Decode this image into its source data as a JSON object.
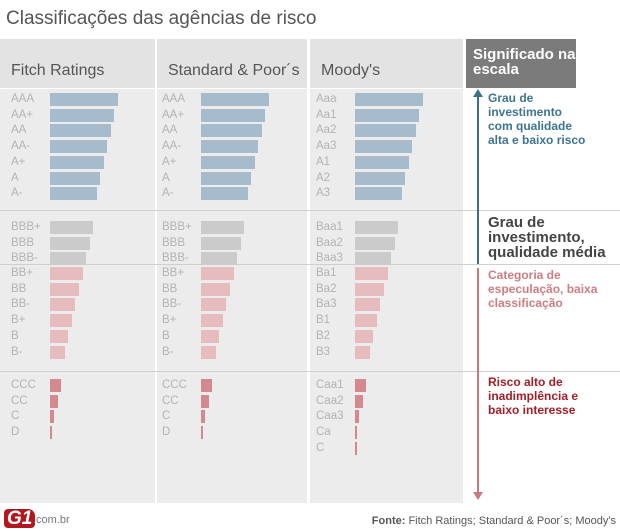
{
  "title": "Classificações das agências de risco",
  "agencies": [
    {
      "name": "Fitch Ratings",
      "groups": [
        [
          "AAA",
          "AA+",
          "AA",
          "AA-",
          "A+",
          "A",
          "A-"
        ],
        [
          "BBB+",
          "BBB",
          "BBB-"
        ],
        [
          "BB+",
          "BB",
          "BB-",
          "B+",
          "B",
          "B-"
        ],
        [
          "CCC",
          "CC",
          "C",
          "D"
        ]
      ]
    },
    {
      "name": "Standard & Poor´s",
      "groups": [
        [
          "AAA",
          "AA+",
          "AA",
          "AA-",
          "A+",
          "A",
          "A-"
        ],
        [
          "BBB+",
          "BBB",
          "BBB-"
        ],
        [
          "BB+",
          "BB",
          "BB-",
          "B+",
          "B",
          "B-"
        ],
        [
          "CCC",
          "CC",
          "C",
          "D"
        ]
      ]
    },
    {
      "name": "Moody's",
      "groups": [
        [
          "Aaa",
          "Aa1",
          "Aa2",
          "Aa3",
          "A1",
          "A2",
          "A3"
        ],
        [
          "Baa1",
          "Baa2",
          "Baa3"
        ],
        [
          "Ba1",
          "Ba2",
          "Ba3",
          "B1",
          "B2",
          "B3"
        ],
        [
          "Caa1",
          "Caa2",
          "Caa3",
          "Ca",
          "C"
        ]
      ]
    }
  ],
  "meaning": {
    "header": "Significado na escala",
    "notes": [
      "Grau de investimento com qualidade alta e baixo risco",
      "Grau de investimento, qualidade média",
      "Categoria de especulação, baixa classificação",
      "Risco alto de inadimplência e baixo interesse"
    ]
  },
  "colors": {
    "group_bars": [
      "#a6bbcb",
      "#cbcbcb",
      "#e6bcbf",
      "#d4898e"
    ],
    "note_text": [
      "#3d7590",
      "#444444",
      "#cc7d82",
      "#a31e27"
    ],
    "arrow_up": "#3d6f8a",
    "arrow_down": "#c9787c",
    "logo": "#b2161f"
  },
  "footer": {
    "source_label": "Fonte:",
    "source": " Fitch Ratings; Standard & Poor´s; Moody's",
    "logo": "G1",
    "domain": ".com.br"
  }
}
